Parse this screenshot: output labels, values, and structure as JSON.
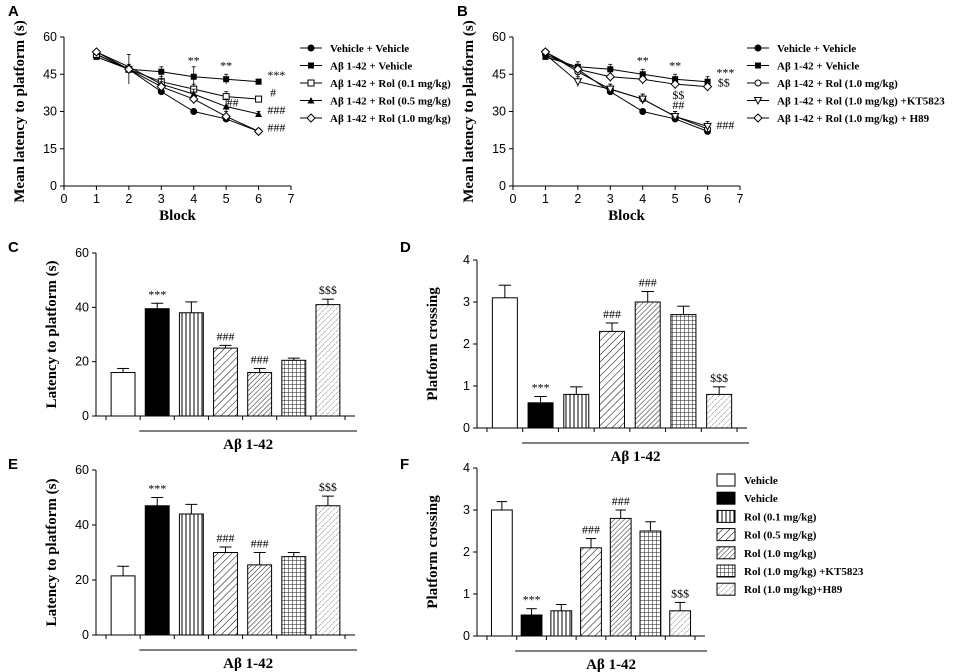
{
  "chart_data": [
    {
      "panel": "A",
      "type": "line",
      "xlabel": "Block",
      "ylabel": "Mean latency to platform (s)",
      "xlim": [
        0,
        7
      ],
      "ylim": [
        0,
        60
      ],
      "xticks": [
        0,
        1,
        2,
        3,
        4,
        5,
        6,
        7
      ],
      "yticks": [
        0,
        15,
        30,
        45,
        60
      ],
      "legend_position": "right",
      "series": [
        {
          "name": "Vehicle + Vehicle",
          "marker": "dot",
          "x": [
            1,
            2,
            3,
            4,
            5,
            6
          ],
          "y": [
            53,
            47,
            38,
            30,
            27,
            22
          ],
          "err": [
            1,
            1,
            1,
            1,
            1,
            1
          ]
        },
        {
          "name": "Aβ 1-42 + Vehicle",
          "marker": "square",
          "x": [
            1,
            2,
            3,
            4,
            5,
            6
          ],
          "y": [
            52,
            47,
            46,
            44,
            43,
            42
          ],
          "err": [
            1,
            6,
            2,
            4,
            2,
            1
          ]
        },
        {
          "name": "Aβ 1-42 + Rol (0.1 mg/kg)",
          "marker": "open-square",
          "x": [
            1,
            2,
            3,
            4,
            5,
            6
          ],
          "y": [
            53,
            47,
            42,
            39,
            36,
            35
          ],
          "err": [
            1,
            1,
            2,
            2,
            2,
            1
          ]
        },
        {
          "name": "Aβ 1-42 + Rol (0.5 mg/kg)",
          "marker": "triangle",
          "x": [
            1,
            2,
            3,
            4,
            5,
            6
          ],
          "y": [
            54,
            48,
            41,
            37,
            32,
            29
          ],
          "err": [
            1,
            1,
            2,
            2,
            3,
            1
          ]
        },
        {
          "name": "Aβ 1-42 + Rol (1.0 mg/kg)",
          "marker": "diamond",
          "x": [
            1,
            2,
            3,
            4,
            5,
            6
          ],
          "y": [
            54,
            47,
            40,
            35,
            28,
            22
          ],
          "err": [
            1,
            1,
            2,
            2,
            2,
            1
          ]
        }
      ],
      "annotations": [
        {
          "text": "**",
          "x": 4,
          "y": 49
        },
        {
          "text": "**",
          "x": 5,
          "y": 47
        },
        {
          "text": "***",
          "x": 6.55,
          "y": 43
        },
        {
          "text": "#",
          "x": 6.45,
          "y": 36
        },
        {
          "text": "##",
          "x": 5.2,
          "y": 32
        },
        {
          "text": "###",
          "x": 6.55,
          "y": 29
        },
        {
          "text": "###",
          "x": 6.55,
          "y": 22
        }
      ]
    },
    {
      "panel": "B",
      "type": "line",
      "xlabel": "Block",
      "ylabel": "Mean latency to platform (s)",
      "xlim": [
        0,
        7
      ],
      "ylim": [
        0,
        60
      ],
      "xticks": [
        0,
        1,
        2,
        3,
        4,
        5,
        6,
        7
      ],
      "yticks": [
        0,
        15,
        30,
        45,
        60
      ],
      "legend_position": "right",
      "series": [
        {
          "name": "Vehicle + Vehicle",
          "marker": "dot",
          "x": [
            1,
            2,
            3,
            4,
            5,
            6
          ],
          "y": [
            53,
            47,
            38,
            30,
            27,
            22
          ],
          "err": [
            1,
            1,
            1,
            1,
            1,
            1
          ]
        },
        {
          "name": "Aβ 1-42 + Vehicle",
          "marker": "square",
          "x": [
            1,
            2,
            3,
            4,
            5,
            6
          ],
          "y": [
            52,
            48,
            47,
            45,
            43,
            42
          ],
          "err": [
            1,
            2,
            2,
            2,
            2,
            2
          ]
        },
        {
          "name": "Aβ 1-42 + Rol (1.0 mg/kg)",
          "marker": "open-dot",
          "x": [
            1,
            2,
            3,
            4,
            5,
            6
          ],
          "y": [
            54,
            46,
            39,
            35,
            28,
            23
          ],
          "err": [
            1,
            2,
            2,
            2,
            2,
            2
          ]
        },
        {
          "name": "Aβ 1-42 + Rol (1.0 mg/kg) +KT5823",
          "marker": "open-triangle-down",
          "x": [
            1,
            2,
            3,
            4,
            5,
            6
          ],
          "y": [
            53,
            42,
            39,
            35,
            28,
            24
          ],
          "err": [
            1,
            2,
            2,
            2,
            2,
            2
          ]
        },
        {
          "name": "Aβ 1-42 + Rol (1.0 mg/kg) + H89",
          "marker": "open-diamond",
          "x": [
            1,
            2,
            3,
            4,
            5,
            6
          ],
          "y": [
            54,
            47,
            44,
            43,
            41,
            40
          ],
          "err": [
            1,
            1,
            2,
            2,
            2,
            1
          ]
        }
      ],
      "annotations": [
        {
          "text": "**",
          "x": 4,
          "y": 49
        },
        {
          "text": "**",
          "x": 5,
          "y": 47
        },
        {
          "text": "***",
          "x": 6.55,
          "y": 44
        },
        {
          "text": "$$",
          "x": 6.5,
          "y": 40
        },
        {
          "text": "$$",
          "x": 5.1,
          "y": 35
        },
        {
          "text": "##",
          "x": 5.1,
          "y": 31
        },
        {
          "text": "###",
          "x": 6.55,
          "y": 23
        }
      ]
    },
    {
      "panel": "C",
      "type": "bar",
      "ylabel": "Latency to platform (s)",
      "group_label": "Aβ 1-42",
      "ylim": [
        0,
        60
      ],
      "yticks": [
        0,
        20,
        40,
        60
      ],
      "categories": [
        "Vehicle",
        "Vehicle",
        "Rol (0.1 mg/kg)",
        "Rol (0.5 mg/kg)",
        "Rol (1.0 mg/kg)",
        "Rol (1.0 mg/kg) +KT5823",
        "Rol (1.0 mg/kg)+H89"
      ],
      "values": [
        16,
        39.5,
        38,
        25,
        16,
        20.5,
        41
      ],
      "errors": [
        1.5,
        2,
        4,
        1,
        1.5,
        0.8,
        2
      ],
      "labels": [
        "",
        "***",
        "",
        "###",
        "###",
        "",
        "$$$"
      ]
    },
    {
      "panel": "D",
      "type": "bar",
      "ylabel": "Platform crossing",
      "group_label": "Aβ 1-42",
      "ylim": [
        0,
        4
      ],
      "yticks": [
        0,
        1,
        2,
        3,
        4
      ],
      "categories": [
        "Vehicle",
        "Vehicle",
        "Rol (0.1 mg/kg)",
        "Rol (0.5 mg/kg)",
        "Rol (1.0 mg/kg)",
        "Rol (1.0 mg/kg) +KT5823",
        "Rol (1.0 mg/kg)+H89"
      ],
      "values": [
        3.1,
        0.6,
        0.8,
        2.3,
        3.0,
        2.7,
        0.8
      ],
      "errors": [
        0.3,
        0.15,
        0.18,
        0.2,
        0.25,
        0.2,
        0.18
      ],
      "labels": [
        "",
        "***",
        "",
        "###",
        "###",
        "",
        "$$$"
      ]
    },
    {
      "panel": "E",
      "type": "bar",
      "ylabel": "Latency to platform (s)",
      "group_label": "Aβ 1-42",
      "ylim": [
        0,
        60
      ],
      "yticks": [
        0,
        20,
        40,
        60
      ],
      "categories": [
        "Vehicle",
        "Vehicle",
        "Rol (0.1 mg/kg)",
        "Rol (0.5 mg/kg)",
        "Rol (1.0 mg/kg)",
        "Rol (1.0 mg/kg) +KT5823",
        "Rol (1.0 mg/kg)+H89"
      ],
      "values": [
        21.5,
        47,
        44,
        30,
        25.5,
        28.5,
        47
      ],
      "errors": [
        3.5,
        3,
        3.5,
        2,
        4.5,
        1.5,
        3.5
      ],
      "labels": [
        "",
        "***",
        "",
        "###",
        "###",
        "",
        "$$$"
      ]
    },
    {
      "panel": "F",
      "type": "bar",
      "ylabel": "Platform crossing",
      "group_label": "Aβ 1-42",
      "ylim": [
        0,
        4
      ],
      "yticks": [
        0,
        1,
        2,
        3,
        4
      ],
      "categories": [
        "Vehicle",
        "Vehicle",
        "Rol (0.1 mg/kg)",
        "Rol (0.5 mg/kg)",
        "Rol (1.0 mg/kg)",
        "Rol (1.0 mg/kg) +KT5823",
        "Rol (1.0 mg/kg)+H89"
      ],
      "values": [
        3.0,
        0.5,
        0.6,
        2.1,
        2.8,
        2.5,
        0.6
      ],
      "errors": [
        0.2,
        0.15,
        0.15,
        0.22,
        0.2,
        0.22,
        0.2
      ],
      "labels": [
        "",
        "***",
        "",
        "###",
        "###",
        "",
        "$$$"
      ]
    }
  ],
  "bar_legend": {
    "position": "right",
    "entries": [
      {
        "label": "Vehicle",
        "pattern": "open"
      },
      {
        "label": "Vehicle",
        "pattern": "solid"
      },
      {
        "label": "Rol (0.1 mg/kg)",
        "pattern": "vertical"
      },
      {
        "label": "Rol (0.5 mg/kg)",
        "pattern": "diagonal"
      },
      {
        "label": "Rol (1.0 mg/kg)",
        "pattern": "diagonal-dense"
      },
      {
        "label": "Rol (1.0 mg/kg) +KT5823",
        "pattern": "grid"
      },
      {
        "label": "Rol (1.0 mg/kg)+H89",
        "pattern": "dots"
      }
    ]
  }
}
